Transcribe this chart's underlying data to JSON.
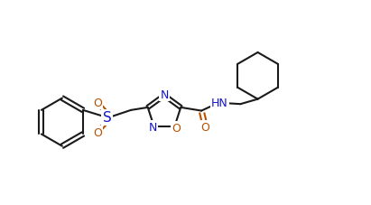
{
  "background_color": "#ffffff",
  "bond_color": "#1a1a1a",
  "heteroatom_color": "#1414cd",
  "oxygen_color": "#b85000",
  "line_width": 1.5,
  "figsize": [
    4.11,
    2.28
  ],
  "dpi": 100,
  "xlim": [
    0,
    11
  ],
  "ylim": [
    0,
    6.1
  ]
}
